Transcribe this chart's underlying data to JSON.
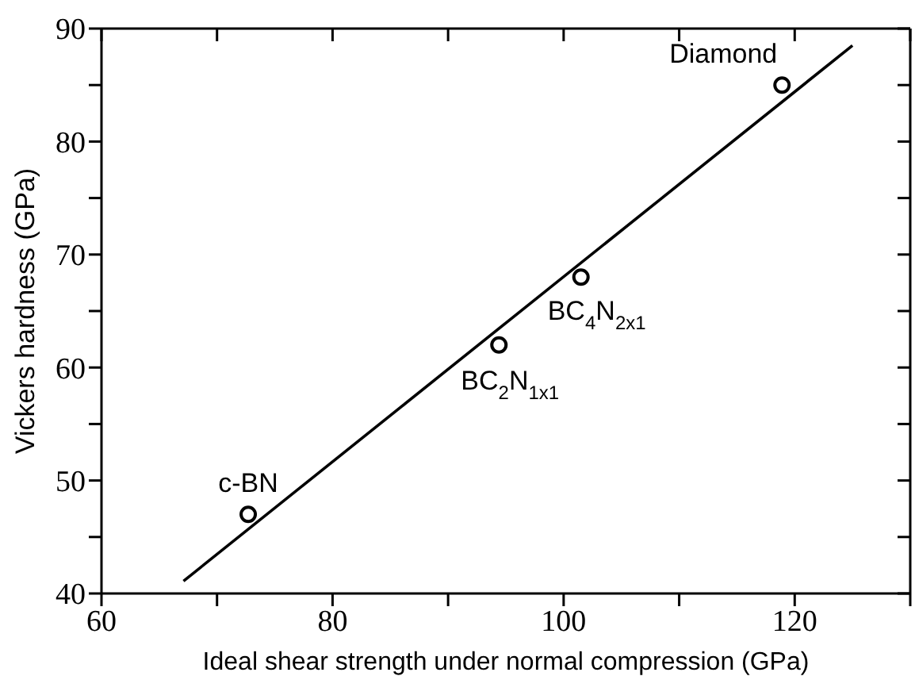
{
  "chart_data": {
    "type": "scatter",
    "xlabel": "Ideal shear strength under normal compression (GPa)",
    "ylabel": "Vickers  hardness (GPa)",
    "xlim": [
      60,
      130
    ],
    "xticks": [
      60,
      {
        "value": 70,
        "label": null
      },
      80,
      {
        "value": 90,
        "label": null
      },
      100,
      {
        "value": 110,
        "label": null
      },
      120,
      {
        "value": 130,
        "label": null
      }
    ],
    "ylim": [
      40,
      90
    ],
    "yticks": [
      40,
      {
        "value": 45,
        "label": null
      },
      50,
      {
        "value": 55,
        "label": null
      },
      60,
      {
        "value": 65,
        "label": null
      },
      70,
      {
        "value": 75,
        "label": null
      },
      80,
      {
        "value": 85,
        "label": null
      },
      90
    ],
    "legend": false,
    "marker": "circle",
    "series": [
      {
        "color": "#000000",
        "x": [
          72.7,
          94.4,
          101.5,
          118.9
        ],
        "values": [
          47,
          62,
          68,
          85
        ]
      },
      {
        "type": "line",
        "color": "#000000",
        "marker": "none",
        "x": [
          67.1,
          125
        ],
        "values": [
          41.1,
          88.5
        ]
      }
    ],
    "annotations": [
      {
        "text": "c-BN",
        "x": 72.7,
        "y": 47
      },
      {
        "text": "BC$_{2}$N$_{1x1}$",
        "x": 94.4,
        "y": 62
      },
      {
        "text": "BC$_{4}$N$_{2x1}$",
        "x": 101.5,
        "y": 68
      },
      {
        "text": "Diamond",
        "x": 118.9,
        "y": 85
      }
    ]
  }
}
